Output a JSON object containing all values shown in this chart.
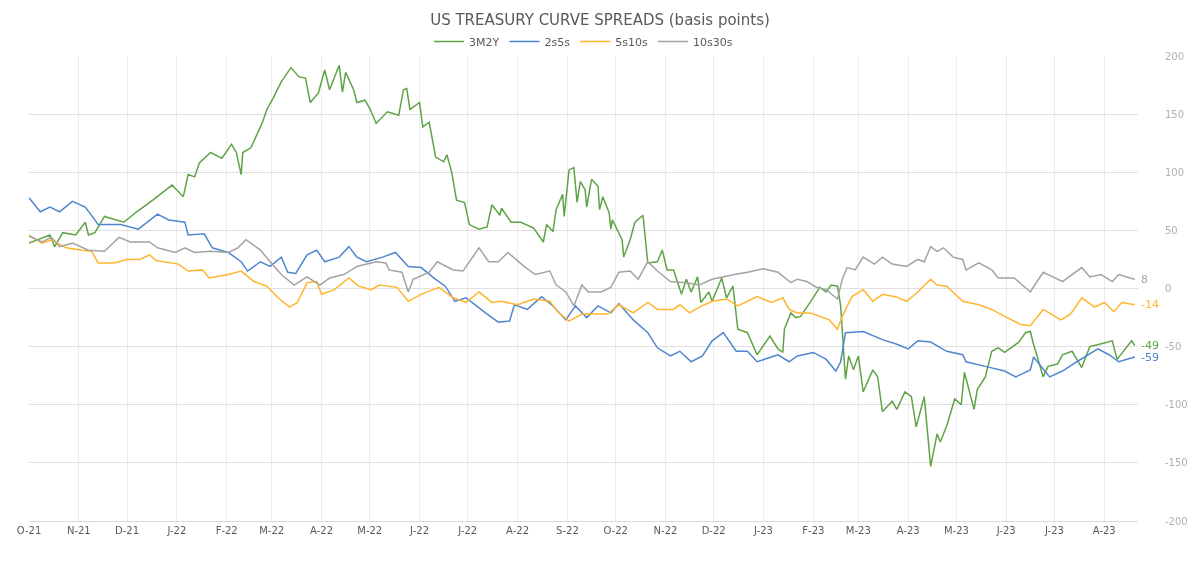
{
  "chart_data": {
    "type": "line",
    "title": "US TREASURY CURVE SPREADS (basis points)",
    "xlim": [
      "2021-10-01",
      "2023-08-22"
    ],
    "xticks": [
      {
        "value": "2021-10-01",
        "label": "O-21"
      },
      {
        "value": "2021-11-01",
        "label": "N-21"
      },
      {
        "value": "2021-12-01",
        "label": "D-21"
      },
      {
        "value": "2022-01-01",
        "label": "J-22"
      },
      {
        "value": "2022-02-01",
        "label": "F-22"
      },
      {
        "value": "2022-03-01",
        "label": "M-22"
      },
      {
        "value": "2022-04-01",
        "label": "A-22"
      },
      {
        "value": "2022-05-01",
        "label": "M-22"
      },
      {
        "value": "2022-06-01",
        "label": "J-22"
      },
      {
        "value": "2022-07-01",
        "label": "J-22"
      },
      {
        "value": "2022-08-01",
        "label": "A-22"
      },
      {
        "value": "2022-09-01",
        "label": "S-22"
      },
      {
        "value": "2022-10-01",
        "label": "O-22"
      },
      {
        "value": "2022-11-01",
        "label": "N-22"
      },
      {
        "value": "2022-12-01",
        "label": "D-22"
      },
      {
        "value": "2023-01-01",
        "label": "J-23"
      },
      {
        "value": "2023-02-01",
        "label": "F-23"
      },
      {
        "value": "2023-03-01",
        "label": "M-23"
      },
      {
        "value": "2023-04-01",
        "label": "A-23"
      },
      {
        "value": "2023-05-01",
        "label": "M-23"
      },
      {
        "value": "2023-06-01",
        "label": "J-23"
      },
      {
        "value": "2023-07-01",
        "label": "J-23"
      },
      {
        "value": "2023-08-01",
        "label": "A-23"
      }
    ],
    "ylim": [
      -200,
      200
    ],
    "yticks": [
      -200,
      -150,
      -100,
      -50,
      0,
      50,
      100,
      150,
      200
    ],
    "grid": true,
    "legend": "top",
    "marker": "none",
    "line_style": "solid",
    "annotations": [
      {
        "text": "8",
        "x": "2023-08-20",
        "y": 8
      },
      {
        "text": "-14",
        "x": "2023-08-20",
        "y": -14
      },
      {
        "text": "-49",
        "x": "2023-08-20",
        "y": -49
      },
      {
        "text": "-59",
        "x": "2023-08-20",
        "y": -59
      }
    ],
    "series": [
      {
        "name": "3M2Y",
        "color": "#5fa347",
        "x": [
          "2021-10-01",
          "2021-10-14",
          "2021-10-17",
          "2021-10-22",
          "2021-10-30",
          "2021-11-05",
          "2021-11-07",
          "2021-11-11",
          "2021-11-17",
          "2021-11-29",
          "2021-12-07",
          "2021-12-17",
          "2021-12-29",
          "2022-01-05",
          "2022-01-08",
          "2022-01-12",
          "2022-01-15",
          "2022-01-22",
          "2022-01-29",
          "2022-02-04",
          "2022-02-07",
          "2022-02-10",
          "2022-02-11",
          "2022-02-16",
          "2022-02-23",
          "2022-02-26",
          "2022-03-02",
          "2022-03-07",
          "2022-03-13",
          "2022-03-18",
          "2022-03-22",
          "2022-03-25",
          "2022-03-30",
          "2022-04-03",
          "2022-04-06",
          "2022-04-12",
          "2022-04-14",
          "2022-04-16",
          "2022-04-21",
          "2022-04-23",
          "2022-04-28",
          "2022-05-01",
          "2022-05-05",
          "2022-05-12",
          "2022-05-19",
          "2022-05-22",
          "2022-05-24",
          "2022-05-26",
          "2022-06-01",
          "2022-06-03",
          "2022-06-07",
          "2022-06-11",
          "2022-06-16",
          "2022-06-18",
          "2022-06-21",
          "2022-06-24",
          "2022-06-29",
          "2022-07-02",
          "2022-07-08",
          "2022-07-13",
          "2022-07-16",
          "2022-07-21",
          "2022-07-22",
          "2022-07-28",
          "2022-08-03",
          "2022-08-11",
          "2022-08-17",
          "2022-08-19",
          "2022-08-23",
          "2022-08-25",
          "2022-08-29",
          "2022-08-30",
          "2022-09-02",
          "2022-09-05",
          "2022-09-07",
          "2022-09-09",
          "2022-09-12",
          "2022-09-13",
          "2022-09-16",
          "2022-09-20",
          "2022-09-21",
          "2022-09-23",
          "2022-09-27",
          "2022-09-28",
          "2022-09-29",
          "2022-10-05",
          "2022-10-06",
          "2022-10-10",
          "2022-10-13",
          "2022-10-18",
          "2022-10-21",
          "2022-10-27",
          "2022-10-30",
          "2022-11-02",
          "2022-11-06",
          "2022-11-11",
          "2022-11-14",
          "2022-11-17",
          "2022-11-21",
          "2022-11-23",
          "2022-11-28",
          "2022-11-30",
          "2022-12-06",
          "2022-12-09",
          "2022-12-13",
          "2022-12-16",
          "2022-12-22",
          "2022-12-28",
          "2023-01-05",
          "2023-01-10",
          "2023-01-13",
          "2023-01-14",
          "2023-01-18",
          "2023-01-21",
          "2023-01-24",
          "2023-01-30",
          "2023-02-05",
          "2023-02-09",
          "2023-02-12",
          "2023-02-16",
          "2023-02-18",
          "2023-02-21",
          "2023-02-23",
          "2023-02-26",
          "2023-03-01",
          "2023-03-04",
          "2023-03-10",
          "2023-03-13",
          "2023-03-16",
          "2023-03-22",
          "2023-03-25",
          "2023-03-30",
          "2023-04-03",
          "2023-04-06",
          "2023-04-11",
          "2023-04-15",
          "2023-04-19",
          "2023-04-21",
          "2023-04-25",
          "2023-04-30",
          "2023-05-04",
          "2023-05-06",
          "2023-05-12",
          "2023-05-14",
          "2023-05-19",
          "2023-05-23",
          "2023-05-27",
          "2023-05-31",
          "2023-06-09",
          "2023-06-13",
          "2023-06-16",
          "2023-06-18",
          "2023-06-24",
          "2023-06-27",
          "2023-07-03",
          "2023-07-06",
          "2023-07-12",
          "2023-07-18",
          "2023-07-23",
          "2023-07-29",
          "2023-08-06",
          "2023-08-09",
          "2023-08-18",
          "2023-08-20"
        ],
        "values": [
          39,
          46,
          36,
          48,
          46,
          57,
          46,
          48,
          62,
          57,
          66,
          76,
          89,
          79,
          98,
          96,
          108,
          117,
          112,
          124,
          117,
          98,
          117,
          121,
          142,
          154,
          164,
          178,
          190,
          182,
          181,
          160,
          168,
          188,
          171,
          192,
          169,
          186,
          171,
          160,
          162,
          155,
          142,
          152,
          149,
          171,
          172,
          154,
          160,
          139,
          143,
          113,
          109,
          115,
          100,
          76,
          74,
          55,
          51,
          53,
          72,
          63,
          69,
          57,
          57,
          52,
          40,
          55,
          49,
          68,
          81,
          62,
          102,
          104,
          74,
          92,
          85,
          70,
          94,
          88,
          68,
          79,
          65,
          51,
          59,
          42,
          27,
          42,
          57,
          63,
          22,
          23,
          33,
          16,
          16,
          -5,
          8,
          -3,
          10,
          -12,
          -3,
          -11,
          9,
          -8,
          2,
          -35,
          -38,
          -57,
          -41,
          -52,
          -55,
          -35,
          -21,
          -25,
          -24,
          -12,
          1,
          -3,
          3,
          2,
          -15,
          -78,
          -58,
          -70,
          -58,
          -89,
          -70,
          -76,
          -106,
          -97,
          -104,
          -89,
          -93,
          -119,
          -93,
          -153,
          -125,
          -132,
          -118,
          -95,
          -100,
          -72,
          -104,
          -87,
          -76,
          -54,
          -51,
          -55,
          -46,
          -38,
          -37,
          -48,
          -76,
          -67,
          -65,
          -57,
          -54,
          -68,
          -50,
          -48,
          -45,
          -61,
          -45,
          -49
        ]
      },
      {
        "name": "2s5s",
        "color": "#4f86d0",
        "x": [
          "2021-10-01",
          "2021-10-08",
          "2021-10-14",
          "2021-10-20",
          "2021-10-28",
          "2021-11-05",
          "2021-11-11",
          "2021-11-13",
          "2021-11-27",
          "2021-12-08",
          "2021-12-20",
          "2021-12-27",
          "2022-01-06",
          "2022-01-08",
          "2022-01-18",
          "2022-01-23",
          "2022-02-02",
          "2022-02-10",
          "2022-02-14",
          "2022-02-22",
          "2022-02-28",
          "2022-03-07",
          "2022-03-11",
          "2022-03-16",
          "2022-03-23",
          "2022-03-29",
          "2022-04-03",
          "2022-04-12",
          "2022-04-18",
          "2022-04-23",
          "2022-04-29",
          "2022-05-09",
          "2022-05-17",
          "2022-05-25",
          "2022-06-02",
          "2022-06-10",
          "2022-06-17",
          "2022-06-23",
          "2022-06-30",
          "2022-07-12",
          "2022-07-20",
          "2022-07-27",
          "2022-07-30",
          "2022-08-07",
          "2022-08-16",
          "2022-08-23",
          "2022-08-31",
          "2022-09-06",
          "2022-09-13",
          "2022-09-20",
          "2022-09-28",
          "2022-10-03",
          "2022-10-12",
          "2022-10-21",
          "2022-10-27",
          "2022-11-04",
          "2022-11-10",
          "2022-11-17",
          "2022-11-24",
          "2022-11-30",
          "2022-12-07",
          "2022-12-15",
          "2022-12-22",
          "2022-12-28",
          "2023-01-10",
          "2023-01-17",
          "2023-01-22",
          "2023-02-01",
          "2023-02-09",
          "2023-02-15",
          "2023-02-18",
          "2023-02-21",
          "2023-03-04",
          "2023-03-16",
          "2023-03-25",
          "2023-04-01",
          "2023-04-07",
          "2023-04-15",
          "2023-04-25",
          "2023-05-05",
          "2023-05-07",
          "2023-05-19",
          "2023-05-31",
          "2023-06-07",
          "2023-06-16",
          "2023-06-18",
          "2023-06-28",
          "2023-07-06",
          "2023-07-15",
          "2023-07-28",
          "2023-08-04",
          "2023-08-10",
          "2023-08-20"
        ],
        "values": [
          78,
          66,
          70,
          66,
          75,
          70,
          59,
          55,
          55,
          51,
          64,
          59,
          57,
          46,
          47,
          35,
          31,
          23,
          15,
          23,
          19,
          27,
          14,
          13,
          29,
          33,
          23,
          27,
          36,
          27,
          23,
          27,
          31,
          19,
          18,
          9,
          2,
          -11,
          -8,
          -21,
          -29,
          -28,
          -14,
          -18,
          -7,
          -15,
          -27,
          -15,
          -25,
          -15,
          -21,
          -13,
          -27,
          -38,
          -51,
          -58,
          -54,
          -63,
          -58,
          -45,
          -38,
          -54,
          -54,
          -63,
          -57,
          -63,
          -58,
          -55,
          -61,
          -71,
          -63,
          -38,
          -37,
          -44,
          -48,
          -52,
          -45,
          -46,
          -54,
          -57,
          -63,
          -67,
          -71,
          -76,
          -70,
          -59,
          -76,
          -71,
          -63,
          -52,
          -57,
          -63,
          -59
        ]
      },
      {
        "name": "5s10s",
        "color": "#ffb52e",
        "x": [
          "2021-10-01",
          "2021-10-09",
          "2021-10-15",
          "2021-10-24",
          "2021-11-03",
          "2021-11-09",
          "2021-11-13",
          "2021-11-23",
          "2021-12-01",
          "2021-12-09",
          "2021-12-15",
          "2021-12-19",
          "2022-01-02",
          "2022-01-08",
          "2022-01-17",
          "2022-01-21",
          "2022-02-02",
          "2022-02-10",
          "2022-02-18",
          "2022-02-26",
          "2022-03-05",
          "2022-03-12",
          "2022-03-17",
          "2022-03-23",
          "2022-03-29",
          "2022-04-01",
          "2022-04-09",
          "2022-04-18",
          "2022-04-24",
          "2022-05-02",
          "2022-05-07",
          "2022-05-18",
          "2022-05-25",
          "2022-06-02",
          "2022-06-13",
          "2022-06-22",
          "2022-06-30",
          "2022-07-08",
          "2022-07-16",
          "2022-07-22",
          "2022-08-01",
          "2022-08-11",
          "2022-08-21",
          "2022-08-26",
          "2022-09-02",
          "2022-09-10",
          "2022-09-18",
          "2022-09-26",
          "2022-10-03",
          "2022-10-12",
          "2022-10-21",
          "2022-10-27",
          "2022-11-06",
          "2022-11-10",
          "2022-11-16",
          "2022-11-22",
          "2022-11-30",
          "2022-12-09",
          "2022-12-16",
          "2022-12-28",
          "2023-01-06",
          "2023-01-13",
          "2023-01-17",
          "2023-01-22",
          "2023-01-30",
          "2023-02-11",
          "2023-02-16",
          "2023-02-19",
          "2023-02-25",
          "2023-03-04",
          "2023-03-10",
          "2023-03-16",
          "2023-03-24",
          "2023-03-31",
          "2023-04-07",
          "2023-04-15",
          "2023-04-19",
          "2023-04-25",
          "2023-05-05",
          "2023-05-15",
          "2023-05-23",
          "2023-05-31",
          "2023-06-10",
          "2023-06-16",
          "2023-06-24",
          "2023-07-05",
          "2023-07-11",
          "2023-07-18",
          "2023-07-26",
          "2023-08-01",
          "2023-08-07",
          "2023-08-12",
          "2023-08-20"
        ],
        "values": [
          46,
          39,
          42,
          35,
          33,
          32,
          22,
          22,
          25,
          25,
          29,
          24,
          21,
          15,
          16,
          9,
          12,
          15,
          6,
          2,
          -8,
          -16,
          -12,
          5,
          6,
          -5,
          -1,
          9,
          2,
          -1,
          3,
          1,
          -11,
          -5,
          1,
          -8,
          -12,
          -3,
          -12,
          -11,
          -14,
          -9,
          -11,
          -20,
          -28,
          -22,
          -22,
          -22,
          -14,
          -21,
          -12,
          -18,
          -18,
          -14,
          -21,
          -16,
          -11,
          -9,
          -15,
          -7,
          -12,
          -8,
          -18,
          -21,
          -21,
          -27,
          -35,
          -24,
          -7,
          -1,
          -11,
          -5,
          -7,
          -11,
          -3,
          8,
          3,
          2,
          -11,
          -14,
          -18,
          -24,
          -31,
          -32,
          -18,
          -27,
          -22,
          -8,
          -16,
          -12,
          -20,
          -12,
          -14
        ]
      },
      {
        "name": "10s30s",
        "color": "#a3a3a3",
        "x": [
          "2021-10-01",
          "2021-10-09",
          "2021-10-15",
          "2021-10-20",
          "2021-10-28",
          "2021-11-07",
          "2021-11-17",
          "2021-11-26",
          "2021-12-03",
          "2021-12-15",
          "2021-12-20",
          "2021-12-31",
          "2022-01-06",
          "2022-01-12",
          "2022-01-22",
          "2022-02-02",
          "2022-02-08",
          "2022-02-13",
          "2022-02-22",
          "2022-02-28",
          "2022-03-07",
          "2022-03-15",
          "2022-03-23",
          "2022-03-31",
          "2022-04-06",
          "2022-04-15",
          "2022-04-23",
          "2022-05-05",
          "2022-05-11",
          "2022-05-13",
          "2022-05-21",
          "2022-05-25",
          "2022-05-28",
          "2022-06-07",
          "2022-06-12",
          "2022-06-22",
          "2022-06-28",
          "2022-07-08",
          "2022-07-14",
          "2022-07-20",
          "2022-07-26",
          "2022-08-05",
          "2022-08-12",
          "2022-08-21",
          "2022-08-25",
          "2022-08-31",
          "2022-09-05",
          "2022-09-10",
          "2022-09-14",
          "2022-09-22",
          "2022-09-28",
          "2022-10-03",
          "2022-10-10",
          "2022-10-15",
          "2022-10-21",
          "2022-10-27",
          "2022-11-04",
          "2022-11-14",
          "2022-11-22",
          "2022-11-30",
          "2022-12-14",
          "2022-12-22",
          "2023-01-01",
          "2023-01-10",
          "2023-01-18",
          "2023-01-22",
          "2023-01-28",
          "2023-02-03",
          "2023-02-09",
          "2023-02-16",
          "2023-02-19",
          "2023-02-22",
          "2023-02-27",
          "2023-03-04",
          "2023-03-11",
          "2023-03-16",
          "2023-03-22",
          "2023-03-31",
          "2023-04-07",
          "2023-04-11",
          "2023-04-15",
          "2023-04-19",
          "2023-04-23",
          "2023-04-29",
          "2023-05-05",
          "2023-05-07",
          "2023-05-15",
          "2023-05-23",
          "2023-05-27",
          "2023-06-06",
          "2023-06-16",
          "2023-06-24",
          "2023-06-30",
          "2023-07-06",
          "2023-07-18",
          "2023-07-23",
          "2023-07-30",
          "2023-08-06",
          "2023-08-10",
          "2023-08-17",
          "2023-08-20"
        ],
        "values": [
          45,
          40,
          44,
          36,
          39,
          33,
          32,
          44,
          40,
          40,
          35,
          31,
          35,
          31,
          32,
          31,
          35,
          42,
          33,
          23,
          12,
          3,
          10,
          3,
          9,
          12,
          19,
          23,
          22,
          16,
          14,
          -3,
          8,
          14,
          23,
          16,
          15,
          35,
          23,
          23,
          31,
          19,
          12,
          15,
          3,
          -3,
          -15,
          3,
          -3,
          -3,
          1,
          14,
          15,
          8,
          23,
          15,
          6,
          5,
          3,
          8,
          12,
          14,
          17,
          14,
          5,
          8,
          6,
          1,
          -1,
          -9,
          8,
          18,
          16,
          27,
          21,
          27,
          21,
          19,
          25,
          23,
          36,
          32,
          35,
          27,
          25,
          16,
          22,
          16,
          9,
          9,
          -3,
          14,
          10,
          6,
          18,
          10,
          12,
          6,
          12,
          9,
          8
        ]
      }
    ]
  }
}
